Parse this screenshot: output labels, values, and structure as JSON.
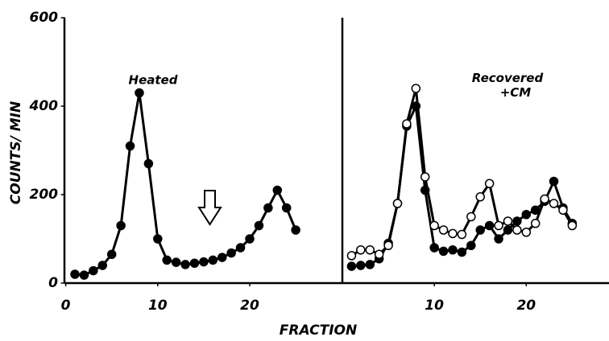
{
  "chart_data": [
    {
      "type": "line",
      "annotation": "Heated",
      "y_label": "COUNTS/ MIN",
      "x_label": "FRACTION",
      "xlim": [
        0,
        29
      ],
      "ylim": [
        0,
        600
      ],
      "xticks": [
        0,
        10,
        20
      ],
      "yticks": [
        0,
        200,
        400,
        600
      ],
      "x": [
        1,
        2,
        3,
        4,
        5,
        6,
        7,
        8,
        9,
        10,
        11,
        12,
        13,
        14,
        15,
        16,
        17,
        18,
        19,
        20,
        21,
        22,
        23,
        24,
        25
      ],
      "series": [
        {
          "color": "#000000",
          "marker": "filled",
          "values": [
            20,
            18,
            28,
            40,
            65,
            130,
            310,
            430,
            270,
            100,
            52,
            47,
            42,
            45,
            48,
            52,
            58,
            68,
            80,
            100,
            130,
            170,
            210,
            170,
            120
          ]
        }
      ]
    },
    {
      "type": "line",
      "annotation": "Recovered\n+CM",
      "xlim": [
        0,
        29
      ],
      "ylim": [
        0,
        600
      ],
      "xticks": [
        10,
        20
      ],
      "x": [
        1,
        2,
        3,
        4,
        5,
        6,
        7,
        8,
        9,
        10,
        11,
        12,
        13,
        14,
        15,
        16,
        17,
        18,
        19,
        20,
        21,
        22,
        23,
        24,
        25
      ],
      "series": [
        {
          "color": "#000000",
          "marker": "filled",
          "values": [
            38,
            40,
            42,
            55,
            90,
            180,
            355,
            400,
            210,
            80,
            72,
            75,
            70,
            85,
            120,
            130,
            100,
            120,
            140,
            155,
            165,
            185,
            230,
            170,
            135
          ]
        },
        {
          "color": "#000000",
          "marker": "open",
          "values": [
            62,
            75,
            75,
            65,
            85,
            180,
            360,
            440,
            240,
            130,
            120,
            112,
            110,
            150,
            195,
            225,
            130,
            140,
            120,
            115,
            135,
            190,
            180,
            165,
            130
          ]
        }
      ]
    }
  ]
}
